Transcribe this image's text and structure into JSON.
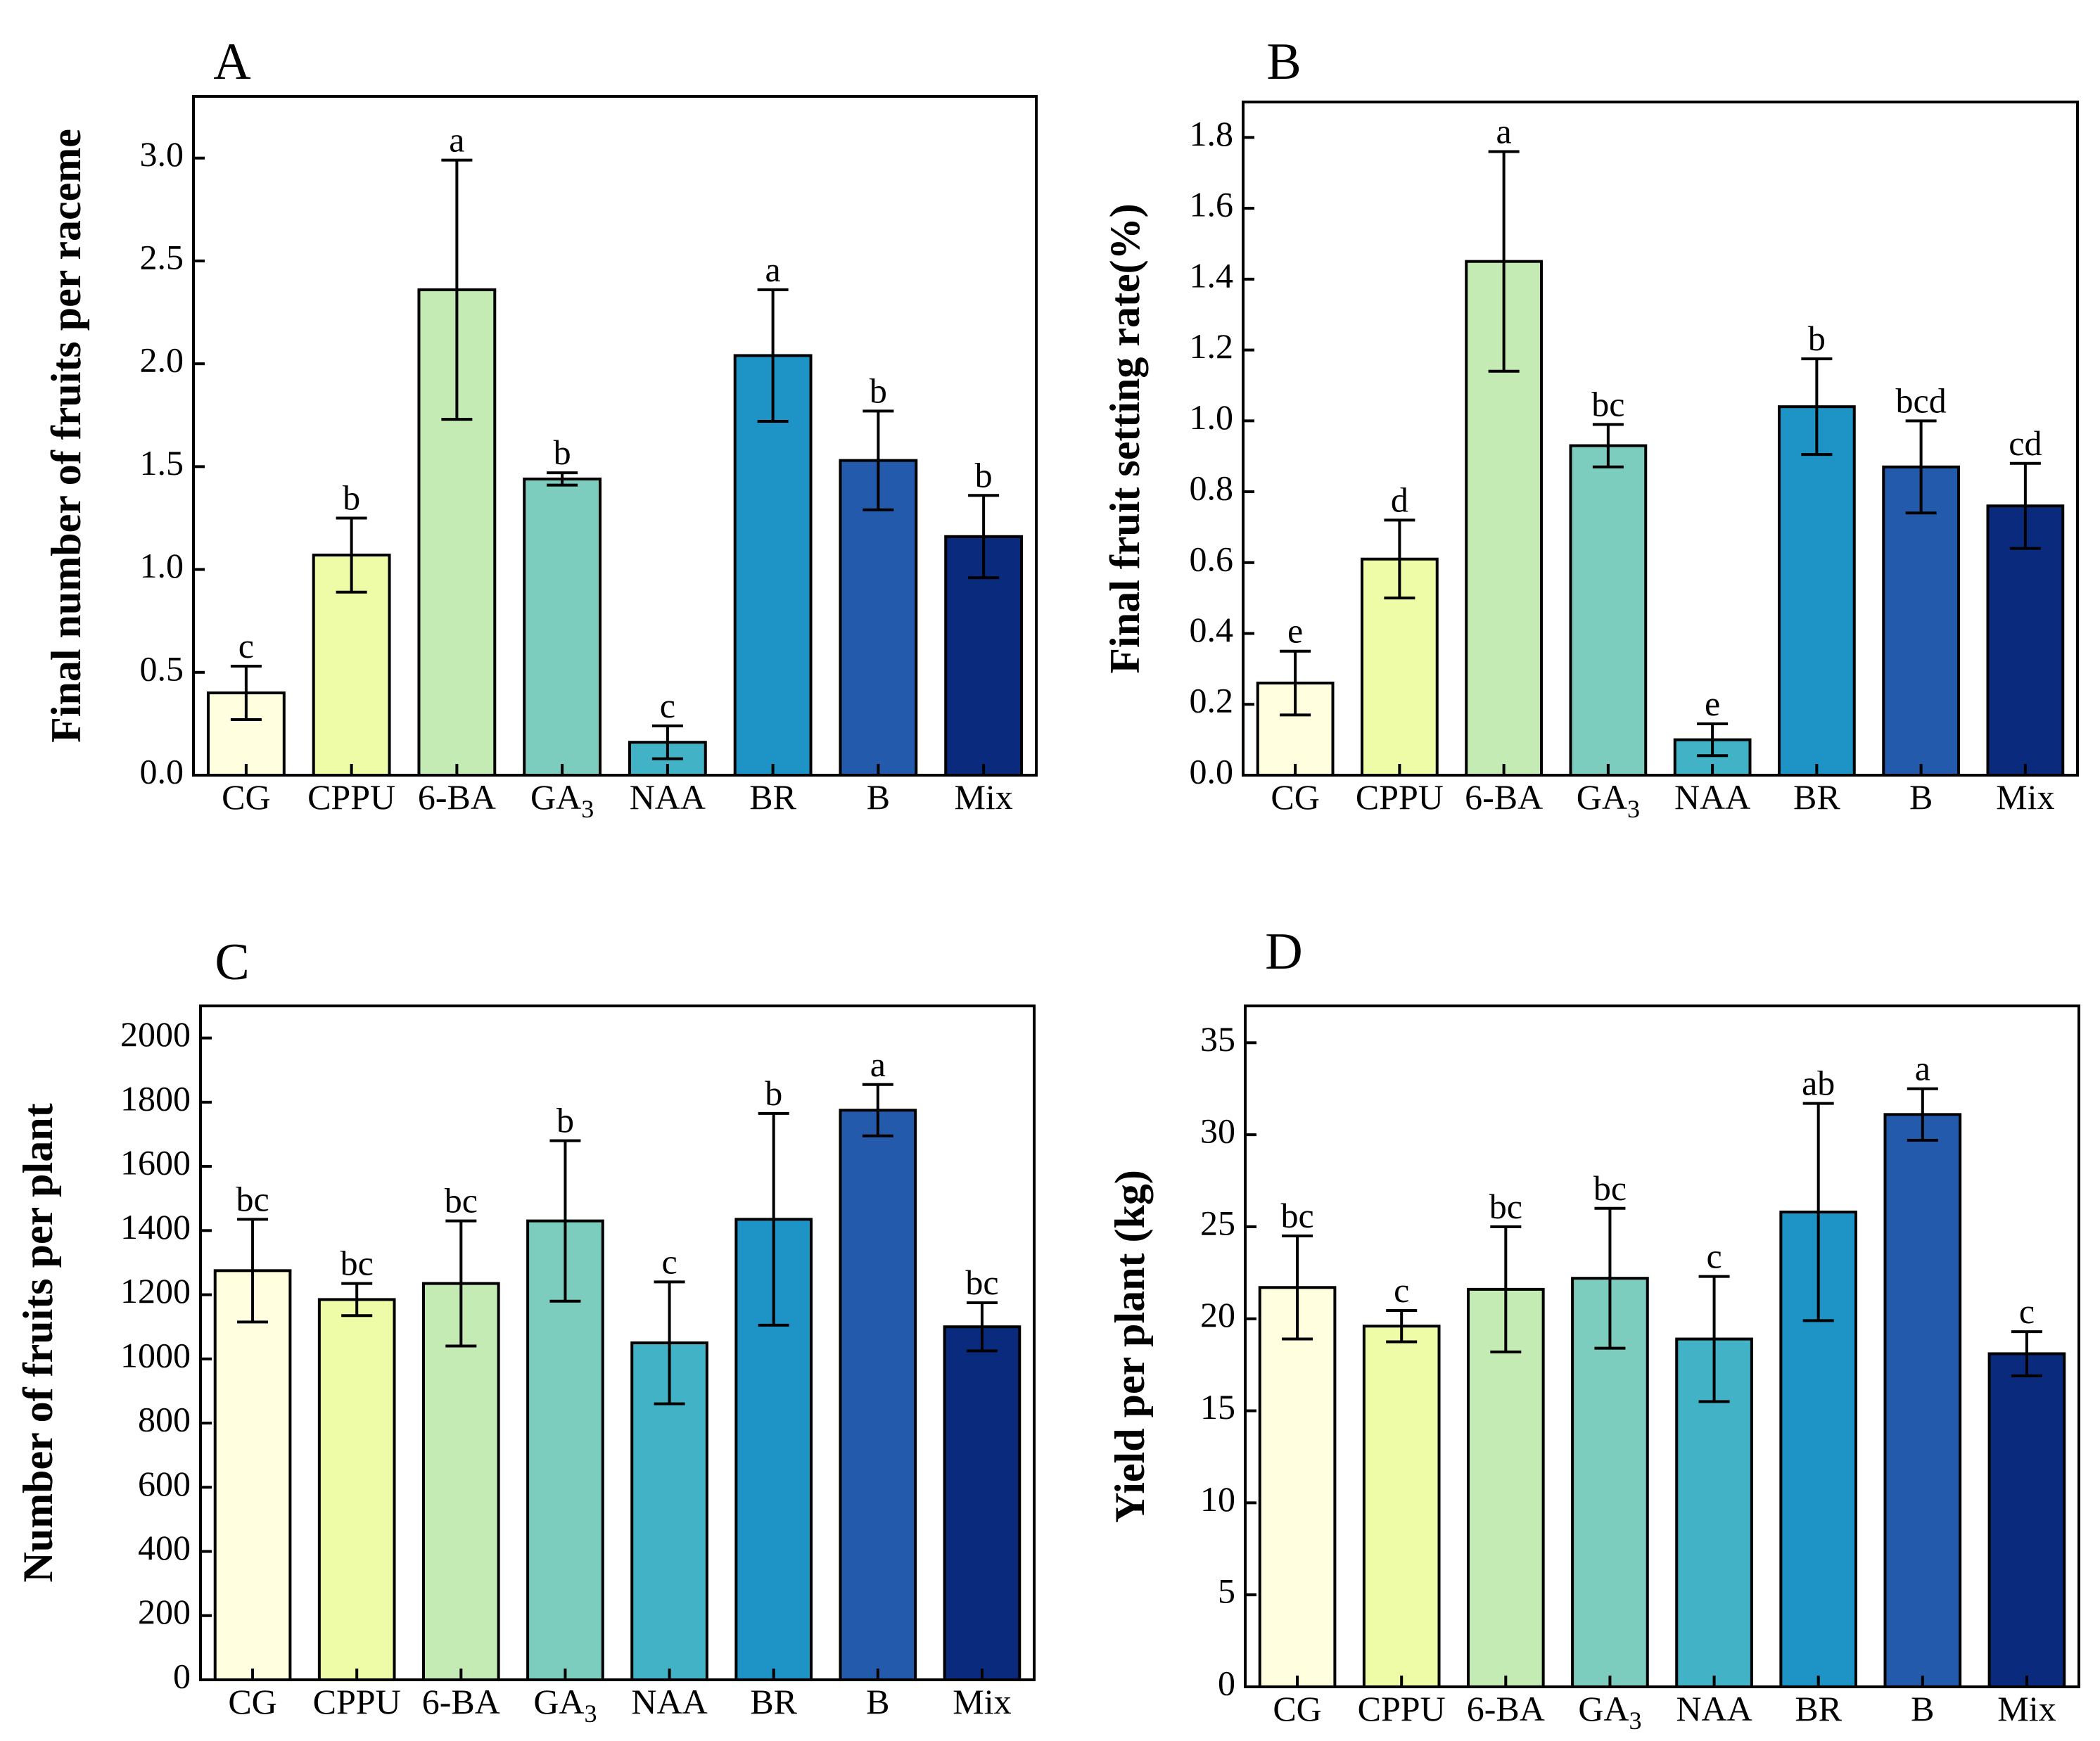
{
  "chart_data": [
    {
      "panel": "A",
      "type": "bar",
      "ylabel": "Final number of fruits per raceme",
      "ylim": [
        0,
        3.3
      ],
      "yticks": [
        0.0,
        0.5,
        1.0,
        1.5,
        2.0,
        2.5,
        3.0
      ],
      "ytick_labels": [
        "0.0",
        "0.5",
        "1.0",
        "1.5",
        "2.0",
        "2.5",
        "3.0"
      ],
      "categories": [
        "CG",
        "CPPU",
        "6-BA",
        "GA3",
        "NAA",
        "BR",
        "B",
        "Mix"
      ],
      "values": [
        0.4,
        1.07,
        2.36,
        1.44,
        0.16,
        2.04,
        1.53,
        1.16
      ],
      "errors": [
        0.13,
        0.18,
        0.63,
        0.03,
        0.08,
        0.32,
        0.24,
        0.2
      ],
      "significance": [
        "c",
        "b",
        "a",
        "b",
        "c",
        "a",
        "b",
        "b"
      ]
    },
    {
      "panel": "B",
      "type": "bar",
      "ylabel": "Final fruit setting rate(%)",
      "ylim": [
        0,
        1.9
      ],
      "yticks": [
        0.0,
        0.2,
        0.4,
        0.6,
        0.8,
        1.0,
        1.2,
        1.4,
        1.6,
        1.8
      ],
      "ytick_labels": [
        "0.0",
        "0.2",
        "0.4",
        "0.6",
        "0.8",
        "1.0",
        "1.2",
        "1.4",
        "1.6",
        "1.8"
      ],
      "categories": [
        "CG",
        "CPPU",
        "6-BA",
        "GA3",
        "NAA",
        "BR",
        "B",
        "Mix"
      ],
      "values": [
        0.26,
        0.61,
        1.45,
        0.93,
        0.1,
        1.04,
        0.87,
        0.76
      ],
      "errors": [
        0.09,
        0.11,
        0.31,
        0.06,
        0.045,
        0.135,
        0.13,
        0.12
      ],
      "significance": [
        "e",
        "d",
        "a",
        "bc",
        "e",
        "b",
        "bcd",
        "cd"
      ]
    },
    {
      "panel": "C",
      "type": "bar",
      "ylabel": "Number of fruits per plant",
      "ylim": [
        0,
        2100
      ],
      "yticks": [
        0,
        200,
        400,
        600,
        800,
        1000,
        1200,
        1400,
        1600,
        1800,
        2000
      ],
      "ytick_labels": [
        "0",
        "200",
        "400",
        "600",
        "800",
        "1000",
        "1200",
        "1400",
        "1600",
        "1800",
        "2000"
      ],
      "categories": [
        "CG",
        "CPPU",
        "6-BA",
        "GA3",
        "NAA",
        "BR",
        "B",
        "Mix"
      ],
      "values": [
        1275,
        1185,
        1235,
        1430,
        1050,
        1435,
        1775,
        1100
      ],
      "errors": [
        160,
        50,
        195,
        250,
        190,
        330,
        80,
        75
      ],
      "significance": [
        "bc",
        "bc",
        "bc",
        "b",
        "c",
        "b",
        "a",
        "bc"
      ]
    },
    {
      "panel": "D",
      "type": "bar",
      "ylabel": "Yield per plant (kg)",
      "ylim": [
        0,
        37
      ],
      "yticks": [
        0,
        5,
        10,
        15,
        20,
        25,
        30,
        35
      ],
      "ytick_labels": [
        "0",
        "5",
        "10",
        "15",
        "20",
        "25",
        "30",
        "35"
      ],
      "categories": [
        "CG",
        "CPPU",
        "6-BA",
        "GA3",
        "NAA",
        "BR",
        "B",
        "Mix"
      ],
      "values": [
        21.7,
        19.6,
        21.6,
        22.2,
        18.9,
        25.8,
        31.1,
        18.1
      ],
      "errors": [
        2.8,
        0.85,
        3.4,
        3.8,
        3.4,
        5.9,
        1.4,
        1.2
      ],
      "significance": [
        "bc",
        "c",
        "bc",
        "bc",
        "c",
        "ab",
        "a",
        "c"
      ]
    }
  ],
  "colors": [
    "#ffffdf",
    "#eefca8",
    "#c4ebb4",
    "#7dcdbe",
    "#42b3c6",
    "#1d93c6",
    "#235aab",
    "#0a2a7e"
  ]
}
